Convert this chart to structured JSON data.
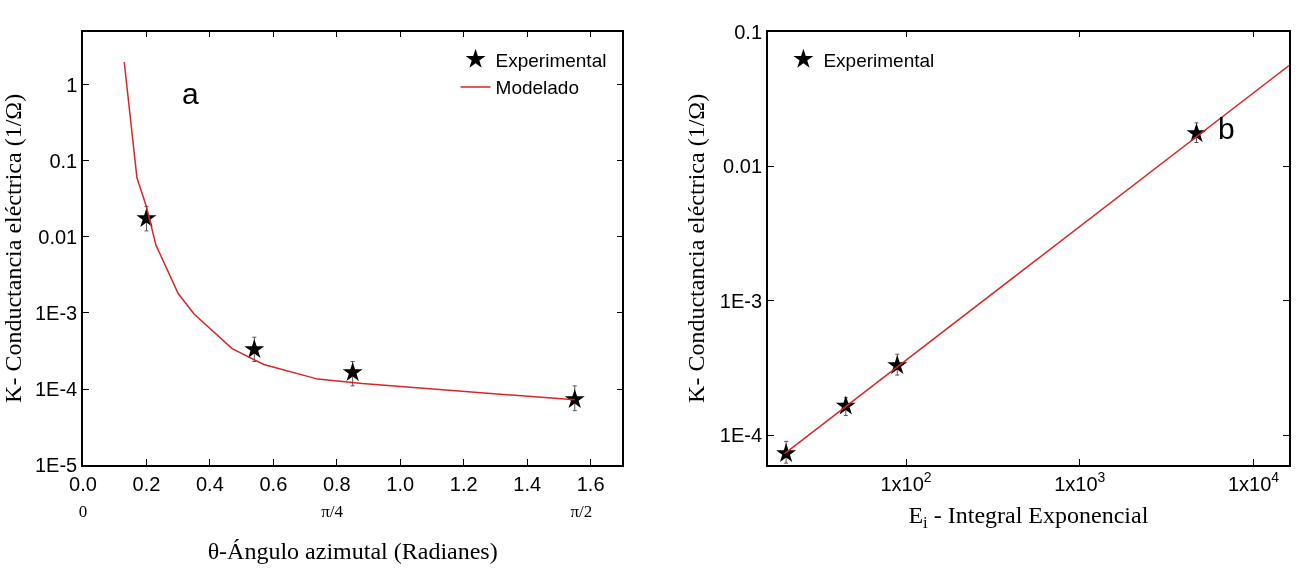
{
  "chart_data": [
    {
      "type": "scatter",
      "xlabel": "θ-Ángulo azimutal (Radianes)",
      "ylabel": "K- Conductancia eléctrica (1/Ω)",
      "annotations": [
        "a"
      ],
      "log": "y",
      "legend": "top right",
      "xlim": [
        0,
        1.7
      ],
      "xticks": [
        {
          "value": 0,
          "label": "0.0"
        },
        0.2,
        0.4,
        0.6,
        0.8,
        {
          "value": 1,
          "label": "1.0"
        },
        1.2,
        1.4,
        1.6
      ],
      "x2lim": [
        0,
        1.7
      ],
      "x2ticks": [
        {
          "value": 0,
          "label": "0"
        },
        {
          "value": 0.785,
          "label": "π/4"
        },
        {
          "value": 1.571,
          "label": "π/2"
        }
      ],
      "ylim": [
        1e-05,
        5
      ],
      "yticks": [
        {
          "value": 1e-05,
          "label": "1E-5"
        },
        {
          "value": 0.0001,
          "label": "1E-4"
        },
        {
          "value": 0.001,
          "label": "1E-3"
        },
        0.01,
        0.1,
        1
      ],
      "series": [
        {
          "name": "Experimental",
          "marker": "star",
          "color": "#000000",
          "x": [
            0.2,
            0.54,
            0.85,
            1.55
          ],
          "values": [
            0.0175,
            0.00033,
            0.000165,
            7.3e-05
          ],
          "errors": [
            [
              0.012,
              0.025
            ],
            [
              0.00023,
              0.00048
            ],
            [
              0.00011,
              0.00023
            ],
            [
              5.2e-05,
              0.00011
            ]
          ]
        },
        {
          "name": "Modelado",
          "type": "line",
          "color": "#d62728",
          "x": [
            0.13,
            0.17,
            0.2,
            0.23,
            0.3,
            0.35,
            0.47,
            0.57,
            0.74,
            0.88,
            1.55
          ],
          "values": [
            2.0,
            0.06,
            0.025,
            0.0078,
            0.0018,
            0.00097,
            0.00034,
            0.00021,
            0.000135,
            0.000118,
            7.2e-05
          ]
        }
      ]
    },
    {
      "type": "scatter",
      "xlabel": "E$_{i}$ - Integral Exponencial",
      "ylabel": "K- Conductancia eléctrica (1/Ω)",
      "annotations": [
        "b"
      ],
      "log": "xy",
      "legend": "top left",
      "xlim": [
        16,
        16000
      ],
      "xticks": [
        {
          "value": 100,
          "label": "1x10$^{2}$"
        },
        {
          "value": 1000,
          "label": "1x10$^{3}$"
        },
        {
          "value": 10000,
          "label": "1x10$^{4}$"
        }
      ],
      "ylim": [
        6e-05,
        0.1
      ],
      "yticks": [
        {
          "value": 0.0001,
          "label": "1E-4"
        },
        {
          "value": 0.001,
          "label": "1E-3"
        },
        0.01,
        0.1
      ],
      "series": [
        {
          "name": "Experimental",
          "marker": "star",
          "color": "#000000",
          "x": [
            20.4,
            45,
            89,
            4700
          ],
          "values": [
            7.3e-05,
            0.000165,
            0.00033,
            0.0175
          ],
          "errors": [
            [
              6.2e-05,
              9e-05
            ],
            [
              0.00014,
              0.00019
            ],
            [
              0.00028,
              0.0004
            ],
            [
              0.015,
              0.021
            ]
          ]
        },
        {
          "type": "line",
          "color": "#d62728",
          "x": [
            20,
            16000
          ],
          "values": [
            7.3e-05,
            0.056
          ]
        }
      ]
    }
  ]
}
